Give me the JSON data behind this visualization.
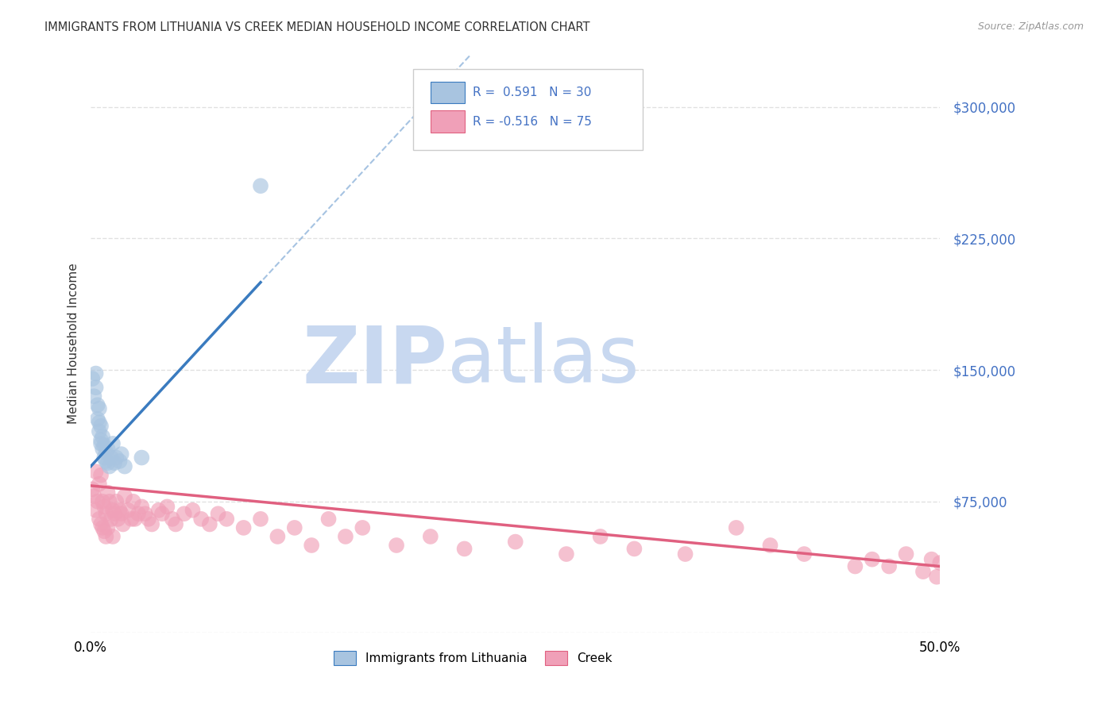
{
  "title": "IMMIGRANTS FROM LITHUANIA VS CREEK MEDIAN HOUSEHOLD INCOME CORRELATION CHART",
  "source": "Source: ZipAtlas.com",
  "ylabel": "Median Household Income",
  "xlim": [
    0.0,
    0.5
  ],
  "ylim": [
    0,
    330000
  ],
  "yticks": [
    0,
    75000,
    150000,
    225000,
    300000
  ],
  "ytick_labels": [
    "",
    "$75,000",
    "$150,000",
    "$225,000",
    "$300,000"
  ],
  "xticks": [
    0.0,
    0.1,
    0.2,
    0.3,
    0.4,
    0.5
  ],
  "xtick_labels": [
    "0.0%",
    "",
    "",
    "",
    "",
    "50.0%"
  ],
  "r_blue": 0.591,
  "n_blue": 30,
  "r_pink": -0.516,
  "n_pink": 75,
  "blue_color": "#a8c4e0",
  "blue_line_color": "#3a7bbf",
  "pink_color": "#f0a0b8",
  "pink_line_color": "#e06080",
  "blue_scatter_x": [
    0.001,
    0.002,
    0.003,
    0.003,
    0.004,
    0.004,
    0.005,
    0.005,
    0.005,
    0.006,
    0.006,
    0.006,
    0.007,
    0.007,
    0.008,
    0.008,
    0.009,
    0.009,
    0.01,
    0.01,
    0.011,
    0.012,
    0.013,
    0.014,
    0.015,
    0.017,
    0.018,
    0.02,
    0.03,
    0.1
  ],
  "blue_scatter_y": [
    145000,
    135000,
    148000,
    140000,
    130000,
    122000,
    120000,
    115000,
    128000,
    110000,
    108000,
    118000,
    105000,
    112000,
    100000,
    107000,
    103000,
    98000,
    97000,
    105000,
    95000,
    100000,
    108000,
    97000,
    100000,
    98000,
    102000,
    95000,
    100000,
    255000
  ],
  "pink_scatter_x": [
    0.001,
    0.002,
    0.003,
    0.003,
    0.004,
    0.005,
    0.005,
    0.006,
    0.006,
    0.007,
    0.007,
    0.008,
    0.008,
    0.009,
    0.009,
    0.01,
    0.01,
    0.011,
    0.012,
    0.013,
    0.013,
    0.014,
    0.015,
    0.016,
    0.017,
    0.018,
    0.019,
    0.02,
    0.022,
    0.024,
    0.025,
    0.026,
    0.028,
    0.03,
    0.032,
    0.034,
    0.036,
    0.04,
    0.042,
    0.045,
    0.048,
    0.05,
    0.055,
    0.06,
    0.065,
    0.07,
    0.075,
    0.08,
    0.09,
    0.1,
    0.11,
    0.12,
    0.13,
    0.14,
    0.15,
    0.16,
    0.18,
    0.2,
    0.22,
    0.25,
    0.28,
    0.3,
    0.32,
    0.35,
    0.38,
    0.4,
    0.42,
    0.45,
    0.46,
    0.47,
    0.48,
    0.49,
    0.495,
    0.498,
    0.5
  ],
  "pink_scatter_y": [
    82000,
    78000,
    92000,
    70000,
    75000,
    85000,
    65000,
    90000,
    62000,
    75000,
    60000,
    72000,
    58000,
    68000,
    55000,
    80000,
    60000,
    75000,
    65000,
    70000,
    55000,
    68000,
    75000,
    65000,
    70000,
    68000,
    62000,
    78000,
    70000,
    65000,
    75000,
    65000,
    68000,
    72000,
    68000,
    65000,
    62000,
    70000,
    68000,
    72000,
    65000,
    62000,
    68000,
    70000,
    65000,
    62000,
    68000,
    65000,
    60000,
    65000,
    55000,
    60000,
    50000,
    65000,
    55000,
    60000,
    50000,
    55000,
    48000,
    52000,
    45000,
    55000,
    48000,
    45000,
    60000,
    50000,
    45000,
    38000,
    42000,
    38000,
    45000,
    35000,
    42000,
    32000,
    40000
  ],
  "watermark_zip": "ZIP",
  "watermark_atlas": "atlas",
  "watermark_color": "#c8d8f0",
  "background_color": "#ffffff",
  "grid_color": "#dddddd",
  "title_color": "#333333",
  "axis_color": "#4472c4"
}
